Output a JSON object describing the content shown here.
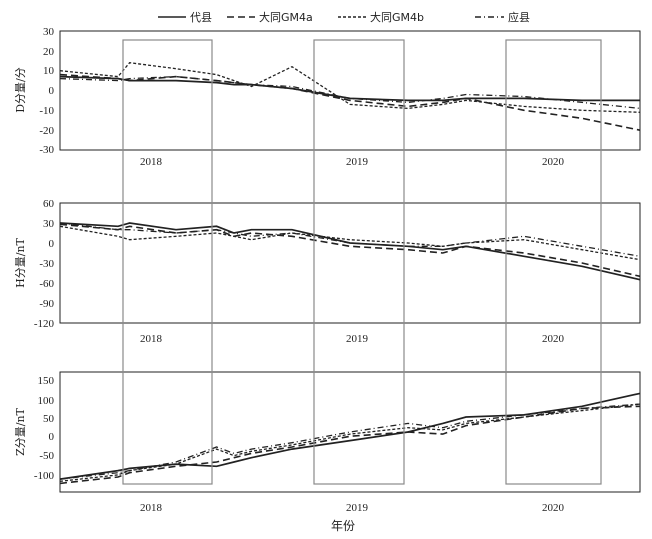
{
  "chart_data": {
    "type": "line",
    "legend": {
      "placement": "top",
      "items": [
        "代县",
        "大同GM4a",
        "大同GM4b",
        "应县"
      ]
    },
    "xlabel": "年份",
    "years": [
      "2018",
      "2019",
      "2020"
    ],
    "panels": [
      {
        "id": "D",
        "ylabel": "D分量/分",
        "ylim": [
          -30,
          30
        ],
        "yticks": [
          "30",
          "20",
          "10",
          "0",
          "-10",
          "-20",
          "-30"
        ],
        "x": [
          0,
          0.1,
          0.12,
          0.2,
          0.27,
          0.3,
          0.33,
          0.4,
          0.5,
          0.6,
          0.66,
          0.7,
          0.8,
          0.9,
          1.0
        ],
        "series": [
          {
            "name": "代县",
            "values": [
              7,
              6,
              5,
              5,
              4,
              3,
              3,
              1,
              -4,
              -5,
              -5,
              -4,
              -4,
              -5,
              -5
            ]
          },
          {
            "name": "大同GM4a",
            "values": [
              8,
              6,
              5,
              7,
              5,
              4,
              3,
              1,
              -5,
              -8,
              -6,
              -4,
              -10,
              -14,
              -20
            ]
          },
          {
            "name": "大同GM4b",
            "values": [
              10,
              7,
              14,
              11,
              8,
              5,
              2,
              12,
              -7,
              -9,
              -7,
              -5,
              -8,
              -10,
              -11
            ]
          },
          {
            "name": "应县",
            "values": [
              6,
              5,
              6,
              7,
              5,
              4,
              3,
              2,
              -4,
              -6,
              -4,
              -2,
              -3,
              -6,
              -9
            ]
          }
        ]
      },
      {
        "id": "H",
        "ylabel": "H分量/nT",
        "ylim": [
          -120,
          60
        ],
        "yticks": [
          "60",
          "30",
          "0",
          "-30",
          "-60",
          "-90",
          "-120"
        ],
        "x": [
          0,
          0.1,
          0.12,
          0.2,
          0.27,
          0.3,
          0.33,
          0.4,
          0.5,
          0.6,
          0.66,
          0.7,
          0.8,
          0.9,
          1.0
        ],
        "series": [
          {
            "name": "代县",
            "values": [
              30,
              25,
              30,
              20,
              25,
              15,
              20,
              20,
              0,
              -5,
              -10,
              -5,
              -20,
              -35,
              -55
            ]
          },
          {
            "name": "大同GM4a",
            "values": [
              28,
              20,
              25,
              15,
              20,
              10,
              15,
              10,
              -5,
              -10,
              -15,
              -5,
              -15,
              -30,
              -50
            ]
          },
          {
            "name": "大同GM4b",
            "values": [
              25,
              10,
              5,
              10,
              15,
              10,
              5,
              15,
              5,
              0,
              -5,
              0,
              5,
              -10,
              -25
            ]
          },
          {
            "name": "应县",
            "values": [
              30,
              20,
              20,
              15,
              20,
              15,
              10,
              15,
              0,
              -5,
              -5,
              0,
              10,
              -5,
              -20
            ]
          }
        ]
      },
      {
        "id": "Z",
        "ylabel": "Z分量/nT",
        "ylim": [
          -120,
          160
        ],
        "yticks": [
          "150",
          "100",
          "50",
          "0",
          "-50",
          "-100"
        ],
        "x": [
          0,
          0.1,
          0.12,
          0.2,
          0.27,
          0.3,
          0.33,
          0.4,
          0.5,
          0.6,
          0.66,
          0.7,
          0.8,
          0.9,
          1.0
        ],
        "series": [
          {
            "name": "代县",
            "values": [
              -90,
              -70,
              -65,
              -55,
              -60,
              -50,
              -40,
              -20,
              0,
              20,
              40,
              55,
              60,
              80,
              110
            ]
          },
          {
            "name": "大同GM4a",
            "values": [
              -100,
              -85,
              -75,
              -60,
              -50,
              -40,
              -30,
              -15,
              10,
              20,
              15,
              35,
              55,
              75,
              80
            ]
          },
          {
            "name": "大同GM4b",
            "values": [
              -95,
              -80,
              -70,
              -55,
              -20,
              -35,
              -25,
              -10,
              15,
              30,
              25,
              40,
              55,
              70,
              85
            ]
          },
          {
            "name": "应县",
            "values": [
              -90,
              -75,
              -70,
              -50,
              -15,
              -30,
              -20,
              -5,
              20,
              40,
              30,
              45,
              60,
              75,
              85
            ]
          }
        ]
      }
    ]
  }
}
